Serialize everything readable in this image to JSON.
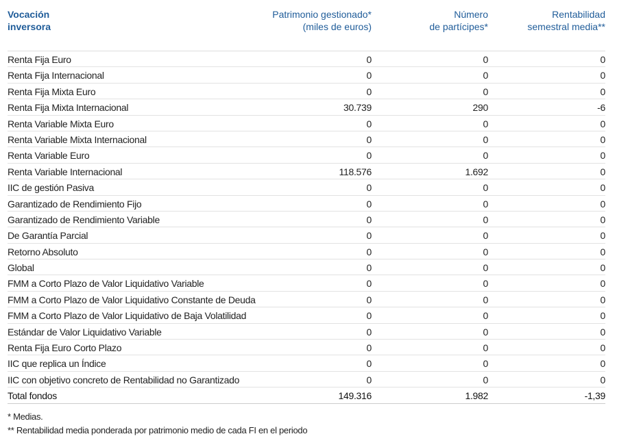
{
  "header": {
    "col0": [
      "Vocación",
      "inversora"
    ],
    "col1": [
      "Patrimonio gestionado*",
      "(miles de euros)"
    ],
    "col2": [
      "Número",
      "de partícipes*"
    ],
    "col3": [
      "Rentabilidad",
      "semestral media**"
    ]
  },
  "rows": [
    [
      "Renta Fija Euro",
      "0",
      "0",
      "0"
    ],
    [
      "Renta Fija Internacional",
      "0",
      "0",
      "0"
    ],
    [
      "Renta Fija Mixta Euro",
      "0",
      "0",
      "0"
    ],
    [
      "Renta Fija Mixta Internacional",
      "30.739",
      "290",
      "-6"
    ],
    [
      "Renta Variable Mixta Euro",
      "0",
      "0",
      "0"
    ],
    [
      "Renta Variable Mixta Internacional",
      "0",
      "0",
      "0"
    ],
    [
      "Renta Variable Euro",
      "0",
      "0",
      "0"
    ],
    [
      "Renta Variable Internacional",
      "118.576",
      "1.692",
      "0"
    ],
    [
      "IIC de gestión Pasiva",
      "0",
      "0",
      "0"
    ],
    [
      "Garantizado de Rendimiento Fijo",
      "0",
      "0",
      "0"
    ],
    [
      "Garantizado de Rendimiento Variable",
      "0",
      "0",
      "0"
    ],
    [
      "De Garantía Parcial",
      "0",
      "0",
      "0"
    ],
    [
      "Retorno Absoluto",
      "0",
      "0",
      "0"
    ],
    [
      "Global",
      "0",
      "0",
      "0"
    ],
    [
      "FMM a Corto Plazo de Valor Liquidativo Variable",
      "0",
      "0",
      "0"
    ],
    [
      "FMM a Corto Plazo de Valor Liquidativo Constante de Deuda",
      "0",
      "0",
      "0"
    ],
    [
      "FMM a Corto Plazo de Valor Liquidativo de Baja Volatilidad",
      "0",
      "0",
      "0"
    ],
    [
      "Estándar de Valor Liquidativo Variable",
      "0",
      "0",
      "0"
    ],
    [
      "Renta Fija Euro Corto Plazo",
      "0",
      "0",
      "0"
    ],
    [
      "IIC que replica un Índice",
      "0",
      "0",
      "0"
    ],
    [
      "IIC con objetivo concreto de Rentabilidad no Garantizado",
      "0",
      "0",
      "0"
    ]
  ],
  "total": [
    "Total fondos",
    "149.316",
    "1.982",
    "-1,39"
  ],
  "notes": [
    "* Medias.",
    "** Rentabilidad media ponderada por patrimonio medio de cada FI en el periodo"
  ],
  "colors": {
    "header": "#1f5c99",
    "divider": "#e2e2e2"
  }
}
